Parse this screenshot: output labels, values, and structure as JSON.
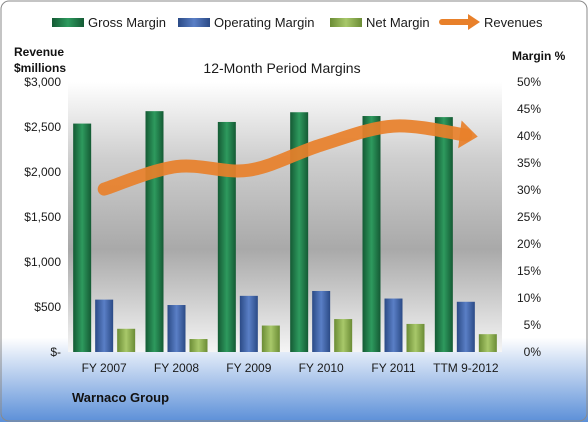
{
  "chart_data": {
    "type": "bar",
    "title": "12-Month Period Margins",
    "company_label": "Warnaco Group",
    "left_axis_title": [
      "Revenue",
      "$millions"
    ],
    "right_axis_title": "Margin %",
    "categories": [
      "FY 2007",
      "FY 2008",
      "FY 2009",
      "FY 2010",
      "FY 2011",
      "TTM 9-2012"
    ],
    "left_ticks": [
      "$-",
      "$500",
      "$1,000",
      "$1,500",
      "$2,000",
      "$2,500",
      "$3,000"
    ],
    "right_ticks": [
      "0%",
      "5%",
      "10%",
      "15%",
      "20%",
      "25%",
      "30%",
      "35%",
      "40%",
      "45%",
      "50%"
    ],
    "left_ylim": [
      0,
      3000
    ],
    "right_ylim": [
      0,
      50
    ],
    "legend_position": "top",
    "grid": false,
    "series": [
      {
        "name": "Gross Margin",
        "axis": "right",
        "kind": "bar",
        "color": "#1f7a48",
        "values": [
          42.3,
          44.6,
          42.6,
          44.4,
          43.7,
          43.5
        ]
      },
      {
        "name": "Operating Margin",
        "axis": "right",
        "kind": "bar",
        "color": "#3c5fa6",
        "values": [
          9.7,
          8.7,
          10.4,
          11.3,
          9.9,
          9.3
        ]
      },
      {
        "name": "Net Margin",
        "axis": "right",
        "kind": "bar",
        "color": "#8aae4b",
        "values": [
          4.3,
          2.4,
          4.9,
          6.1,
          5.2,
          3.3
        ]
      },
      {
        "name": "Revenues",
        "axis": "left",
        "kind": "line",
        "color": "#e8802a",
        "values": [
          1810,
          2060,
          2020,
          2300,
          2510,
          2410
        ]
      }
    ]
  }
}
